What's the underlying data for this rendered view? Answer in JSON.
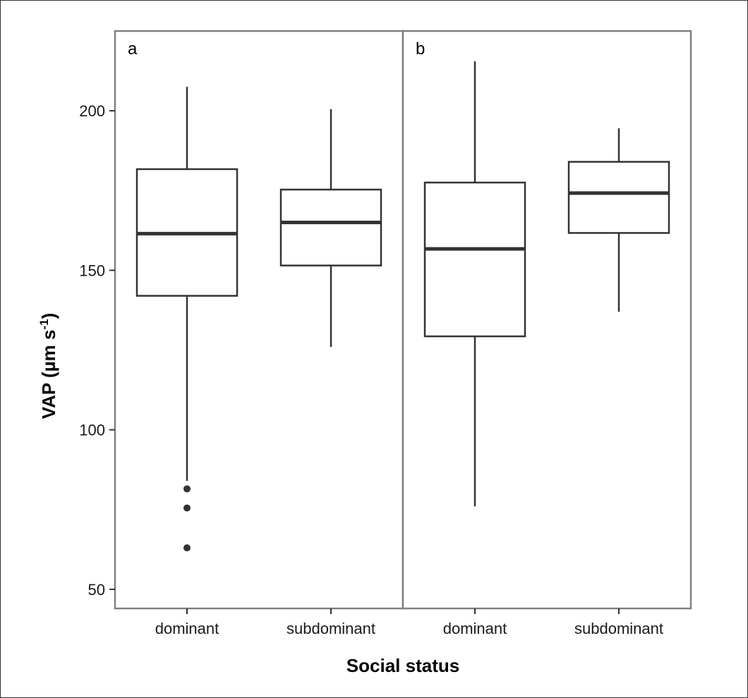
{
  "chart_data": {
    "type": "boxplot",
    "xlabel": "Social status",
    "ylabel": "VAP (µm s",
    "ylabel_superscript": "-1",
    "ylabel_close": ")",
    "yticks": [
      50,
      100,
      150,
      200
    ],
    "ylim": [
      44,
      225
    ],
    "grid": false,
    "panels": [
      {
        "label": "a",
        "categories": [
          "dominant",
          "subdominant"
        ],
        "boxes": [
          {
            "category": "dominant",
            "whisker_low": 84,
            "q1": 142,
            "median": 161.5,
            "q3": 181.7,
            "whisker_high": 207.5,
            "outliers": [
              81.5,
              75.5,
              63
            ]
          },
          {
            "category": "subdominant",
            "whisker_low": 126,
            "q1": 151.5,
            "median": 165,
            "q3": 175.3,
            "whisker_high": 200.5,
            "outliers": []
          }
        ]
      },
      {
        "label": "b",
        "categories": [
          "dominant",
          "subdominant"
        ],
        "boxes": [
          {
            "category": "dominant",
            "whisker_low": 76,
            "q1": 129.3,
            "median": 156.7,
            "q3": 177.5,
            "whisker_high": 215.5,
            "outliers": []
          },
          {
            "category": "subdominant",
            "whisker_low": 137,
            "q1": 161.7,
            "median": 174.2,
            "q3": 184,
            "whisker_high": 194.5,
            "outliers": []
          }
        ]
      }
    ]
  }
}
